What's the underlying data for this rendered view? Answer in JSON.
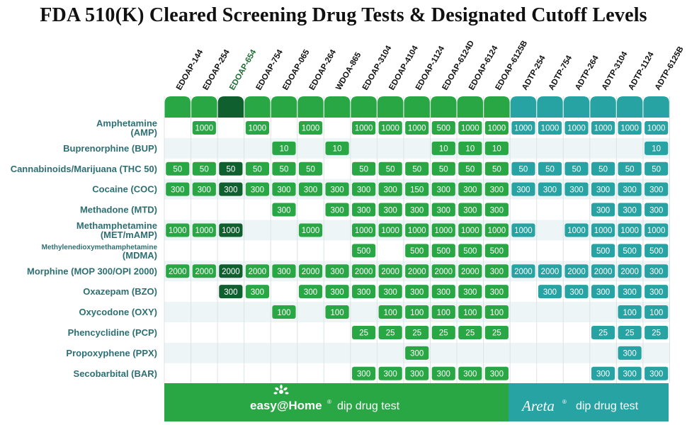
{
  "title": "FDA 510(K) Cleared Screening Drug Tests & Designated Cutoff Levels",
  "colors": {
    "green": "#2aa745",
    "green_dark": "#0f5f2f",
    "teal": "#27a3a3",
    "stripe": "#edf5f6",
    "drug_text": "#2d6f73"
  },
  "chart_data": {
    "type": "table",
    "columns": [
      {
        "name": "EDOAP-144",
        "brand": "easy",
        "highlight": false
      },
      {
        "name": "EDOAP-254",
        "brand": "easy",
        "highlight": false
      },
      {
        "name": "EDOAP-654",
        "brand": "easy",
        "highlight": true
      },
      {
        "name": "EDOAP-754",
        "brand": "easy",
        "highlight": false
      },
      {
        "name": "EDOAP-065",
        "brand": "easy",
        "highlight": false
      },
      {
        "name": "EDOAP-264",
        "brand": "easy",
        "highlight": false
      },
      {
        "name": "WDOA-865",
        "brand": "easy",
        "highlight": false
      },
      {
        "name": "EDOAP-3104",
        "brand": "easy",
        "highlight": false
      },
      {
        "name": "EDOAP-4104",
        "brand": "easy",
        "highlight": false
      },
      {
        "name": "EDOAP-1124",
        "brand": "easy",
        "highlight": false
      },
      {
        "name": "EDOAP-6124D",
        "brand": "easy",
        "highlight": false
      },
      {
        "name": "EDOAP-6124",
        "brand": "easy",
        "highlight": false
      },
      {
        "name": "EDOAP-6125B",
        "brand": "easy",
        "highlight": false
      },
      {
        "name": "ADTP-254",
        "brand": "areta",
        "highlight": false
      },
      {
        "name": "ADTP-754",
        "brand": "areta",
        "highlight": false
      },
      {
        "name": "ADTP-264",
        "brand": "areta",
        "highlight": false
      },
      {
        "name": "ADTP-3104",
        "brand": "areta",
        "highlight": false
      },
      {
        "name": "ADTP-1124",
        "brand": "areta",
        "highlight": false
      },
      {
        "name": "ADTP-6125B",
        "brand": "areta",
        "highlight": false
      }
    ],
    "rows": [
      {
        "drug": [
          "Amphetamine",
          "(AMP)"
        ],
        "values": [
          null,
          "1000",
          null,
          "1000",
          null,
          "1000",
          null,
          "1000",
          "1000",
          "1000",
          "500",
          "1000",
          "1000",
          "1000",
          "1000",
          "1000",
          "1000",
          "1000",
          "1000"
        ]
      },
      {
        "drug": [
          "Buprenorphine (BUP)"
        ],
        "values": [
          null,
          null,
          null,
          null,
          "10",
          null,
          "10",
          null,
          null,
          null,
          "10",
          "10",
          "10",
          null,
          null,
          null,
          null,
          null,
          "10"
        ]
      },
      {
        "drug": [
          "Cannabinoids/Marijuana (THC 50)"
        ],
        "values": [
          "50",
          "50",
          "50",
          "50",
          "50",
          "50",
          null,
          "50",
          "50",
          "50",
          "50",
          "50",
          "50",
          "50",
          "50",
          "50",
          "50",
          "50",
          "50"
        ]
      },
      {
        "drug": [
          "Cocaine (COC)"
        ],
        "values": [
          "300",
          "300",
          "300",
          "300",
          "300",
          "300",
          "300",
          "300",
          "300",
          "150",
          "300",
          "300",
          "300",
          "300",
          "300",
          "300",
          "300",
          "300",
          "300"
        ]
      },
      {
        "drug": [
          "Methadone (MTD)"
        ],
        "values": [
          null,
          null,
          null,
          null,
          "300",
          null,
          "300",
          "300",
          "300",
          "300",
          "300",
          "300",
          "300",
          null,
          null,
          null,
          "300",
          "300",
          "300"
        ]
      },
      {
        "drug": [
          "Methamphetamine",
          "(MET/mAMP)"
        ],
        "values": [
          "1000",
          "1000",
          "1000",
          null,
          null,
          "1000",
          null,
          "1000",
          "1000",
          "1000",
          "1000",
          "1000",
          "1000",
          "1000",
          null,
          "1000",
          "1000",
          "1000",
          "1000"
        ]
      },
      {
        "drug": [
          "Methylenedioxymethamphetamine",
          "(MDMA)"
        ],
        "small_first": true,
        "values": [
          null,
          null,
          null,
          null,
          null,
          null,
          null,
          "500",
          null,
          "500",
          "500",
          "500",
          "500",
          null,
          null,
          null,
          "500",
          "500",
          "500"
        ]
      },
      {
        "drug": [
          "Morphine (MOP 300/OPI 2000)"
        ],
        "values": [
          "2000",
          "2000",
          "2000",
          "2000",
          "300",
          "2000",
          "300",
          "2000",
          "2000",
          "2000",
          "2000",
          "2000",
          "300",
          "2000",
          "2000",
          "2000",
          "2000",
          "2000",
          "300"
        ]
      },
      {
        "drug": [
          "Oxazepam (BZO)"
        ],
        "values": [
          null,
          null,
          "300",
          "300",
          null,
          "300",
          "300",
          "300",
          "300",
          "300",
          "300",
          "300",
          "300",
          null,
          "300",
          "300",
          "300",
          "300",
          "300"
        ]
      },
      {
        "drug": [
          "Oxycodone (OXY)"
        ],
        "values": [
          null,
          null,
          null,
          null,
          "100",
          null,
          "100",
          null,
          "100",
          "100",
          "100",
          "100",
          "100",
          null,
          null,
          null,
          null,
          "100",
          "100"
        ]
      },
      {
        "drug": [
          "Phencyclidine (PCP)"
        ],
        "values": [
          null,
          null,
          null,
          null,
          null,
          null,
          null,
          "25",
          "25",
          "25",
          "25",
          "25",
          "25",
          null,
          null,
          null,
          "25",
          "25",
          "25"
        ]
      },
      {
        "drug": [
          "Propoxyphene (PPX)"
        ],
        "values": [
          null,
          null,
          null,
          null,
          null,
          null,
          null,
          null,
          null,
          "300",
          null,
          null,
          null,
          null,
          null,
          null,
          null,
          "300",
          null
        ]
      },
      {
        "drug": [
          "Secobarbital (BAR)"
        ],
        "values": [
          null,
          null,
          null,
          null,
          null,
          null,
          null,
          "300",
          "300",
          "300",
          "300",
          "300",
          "300",
          null,
          null,
          null,
          "300",
          "300",
          "300"
        ]
      }
    ]
  },
  "banner": {
    "easy_logo": "easy@Home",
    "easy_tm": "®",
    "easy_text": "dip drug test",
    "areta_logo": "Areta",
    "areta_tm": "®",
    "areta_text": "dip drug test"
  }
}
